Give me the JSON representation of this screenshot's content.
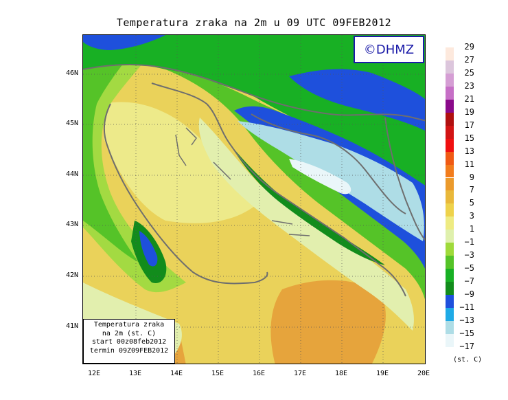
{
  "title": "Temperatura zraka na 2m u 09 UTC 09FEB2012",
  "logo": "©DHMZ",
  "infobox": {
    "line1": "Temperatura zraka",
    "line2": "na 2m (st. C)",
    "line3": "start 00z08feb2012",
    "line4": "termin 09Z09FEB2012"
  },
  "lat_labels": [
    "46N",
    "45N",
    "44N",
    "43N",
    "42N",
    "41N"
  ],
  "lon_labels": [
    "12E",
    "13E",
    "14E",
    "15E",
    "16E",
    "17E",
    "18E",
    "19E",
    "20E"
  ],
  "legend": {
    "labels": [
      "29",
      "27",
      "25",
      "23",
      "21",
      "19",
      "17",
      "15",
      "13",
      "11",
      "9",
      "7",
      "5",
      "3",
      "1",
      "−1",
      "−3",
      "−5",
      "−7",
      "−9",
      "−11",
      "−13",
      "−15",
      "−17"
    ],
    "units": "(st. C)",
    "colors": [
      "#fde9dd",
      "#dcc6dc",
      "#d59ed4",
      "#c66fc6",
      "#8a0a8a",
      "#b01010",
      "#d21414",
      "#f01010",
      "#f05a14",
      "#f27c1c",
      "#eb9a2c",
      "#e9b83a",
      "#eed24b",
      "#eeeb82",
      "#dff0ad",
      "#9fda3a",
      "#55c328",
      "#18b024",
      "#128c1c",
      "#1e50dc",
      "#1eaae6",
      "#aedde6",
      "#eaf6f9"
    ]
  },
  "colors": {
    "sea_warm": "#e6a43c",
    "sea_mid": "#ead25a",
    "sea_light": "#edea8a",
    "coast_pale": "#e2efae",
    "green_light": "#a3da42",
    "green_mid": "#55c328",
    "green_dark": "#18b024",
    "green_deep": "#128c1c",
    "blue_dark": "#1e50dc",
    "blue_light": "#aedde6",
    "white_snow": "#eaf6f9",
    "coastline": "#6e6e6e",
    "logo_blue": "#1a1aa8"
  }
}
